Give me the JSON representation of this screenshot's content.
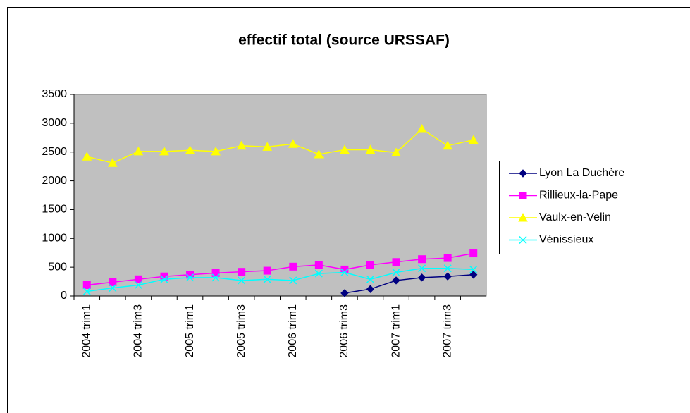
{
  "chart_data": {
    "type": "line",
    "title": "effectif total (source URSSAF)",
    "categories": [
      "2004 trim1",
      null,
      "2004 trim3",
      null,
      "2005 trim1",
      null,
      "2005 trim3",
      null,
      "2006 trim1",
      null,
      "2006 trim3",
      null,
      "2007 trim1",
      null,
      "2007 trim3",
      null
    ],
    "series": [
      {
        "name": "Lyon La Duchère",
        "color": "#000080",
        "marker": "diamond",
        "values": [
          null,
          null,
          null,
          null,
          null,
          null,
          null,
          null,
          null,
          null,
          50,
          120,
          270,
          320,
          340,
          370
        ]
      },
      {
        "name": "Rillieux-la-Pape",
        "color": "#ff00ff",
        "marker": "square",
        "values": [
          190,
          240,
          290,
          340,
          370,
          400,
          420,
          440,
          510,
          540,
          460,
          540,
          590,
          640,
          660,
          740
        ]
      },
      {
        "name": "Vaulx-en-Velin",
        "color": "#ffff00",
        "marker": "triangle",
        "values": [
          2420,
          2310,
          2510,
          2510,
          2530,
          2510,
          2610,
          2590,
          2640,
          2460,
          2540,
          2540,
          2490,
          2900,
          2610,
          2710
        ]
      },
      {
        "name": "Vénissieux",
        "color": "#00ffff",
        "marker": "x",
        "values": [
          80,
          140,
          190,
          290,
          320,
          320,
          270,
          290,
          270,
          390,
          410,
          290,
          410,
          480,
          480,
          460
        ]
      }
    ],
    "ylim": [
      0,
      3500
    ],
    "yticks": [
      0,
      500,
      1000,
      1500,
      2000,
      2500,
      3000,
      3500
    ],
    "grid": false,
    "legend": "right"
  }
}
